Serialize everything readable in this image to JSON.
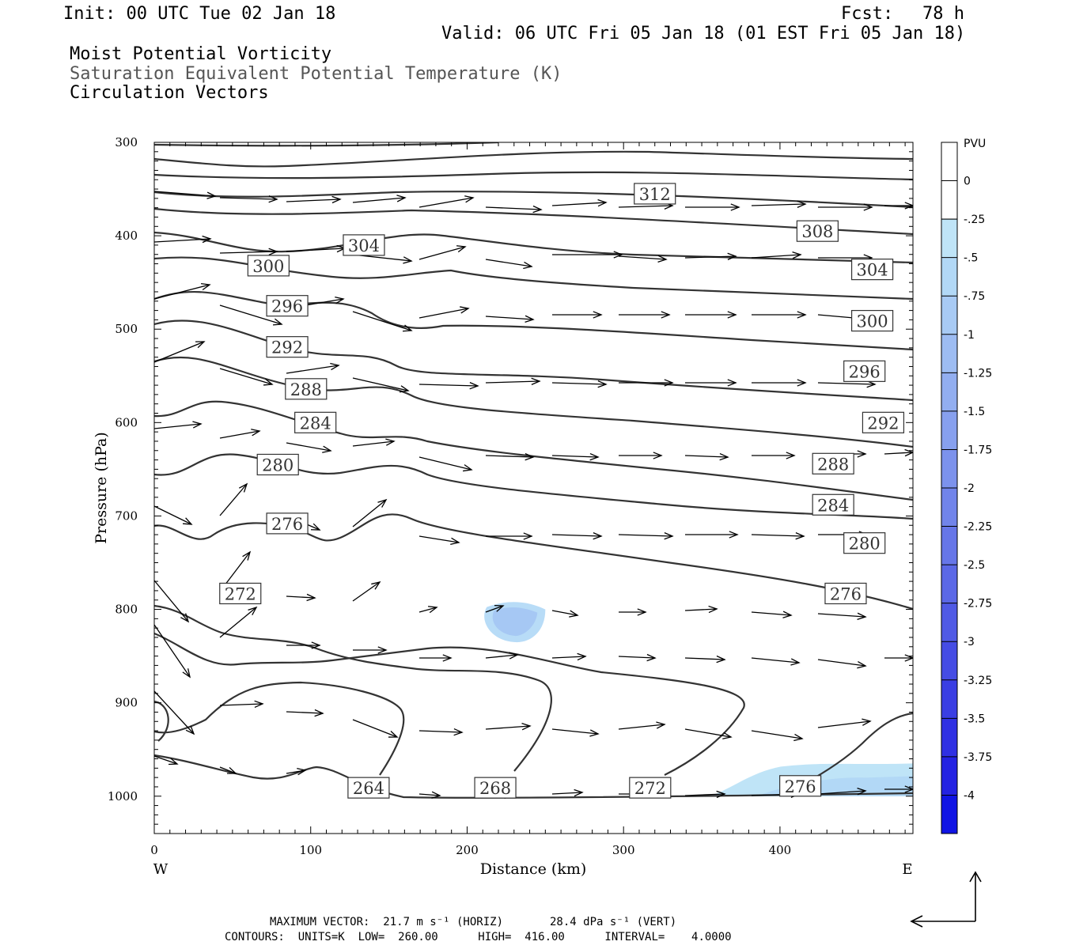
{
  "header": {
    "init": "Init: 00 UTC Tue 02 Jan 18",
    "fcst_label": "Fcst:",
    "fcst_value": "78 h",
    "valid": "Valid: 06 UTC Fri 05 Jan 18 (01 EST Fri 05 Jan 18)"
  },
  "legend_titles": [
    "Moist Potential Vorticity",
    "Saturation Equivalent Potential Temperature (K)",
    "Circulation Vectors"
  ],
  "colorbar": {
    "unit": "PVU",
    "labels": [
      "0",
      "-.25",
      "-.5",
      "-.75",
      "-1",
      "-1.25",
      "-1.5",
      "-1.75",
      "-2",
      "-2.25",
      "-2.5",
      "-2.75",
      "-3",
      "-3.25",
      "-3.5",
      "-3.75",
      "-4"
    ],
    "colors": [
      "#ffffff",
      "#bfe4f7",
      "#b2d8f6",
      "#a8caf4",
      "#9dbcf2",
      "#92aef0",
      "#87a0ee",
      "#7c92ec",
      "#7184ea",
      "#6676e8",
      "#5b68e6",
      "#505ae5",
      "#454ce4",
      "#3a3ee3",
      "#2f30e3",
      "#2422e2",
      "#1014e4"
    ]
  },
  "footer": {
    "max_vector": "MAXIMUM VECTOR:  21.7 m s⁻¹ (HORIZ)       28.4 dPa s⁻¹ (VERT)",
    "contours": "CONTOURS:  UNITS=K  LOW=  260.00      HIGH=  416.00      INTERVAL=    4.0000"
  },
  "chart_data": {
    "type": "contour",
    "xlabel": "Distance (km)",
    "ylabel": "Pressure (hPa)",
    "xlim": [
      0,
      485
    ],
    "ylim": [
      1040,
      300
    ],
    "x_ticks": [
      "0",
      "100",
      "200",
      "300",
      "400"
    ],
    "y_ticks": [
      "300",
      "400",
      "500",
      "600",
      "700",
      "800",
      "900",
      "1000"
    ],
    "x_side_labels": {
      "left": "W",
      "right": "E"
    },
    "contour_labels": [
      {
        "value": "312",
        "x": 320,
        "p": 355
      },
      {
        "value": "308",
        "x": 424,
        "p": 395
      },
      {
        "value": "304",
        "x": 134,
        "p": 410
      },
      {
        "value": "304",
        "x": 459,
        "p": 436
      },
      {
        "value": "300",
        "x": 73,
        "p": 432
      },
      {
        "value": "300",
        "x": 459,
        "p": 491
      },
      {
        "value": "296",
        "x": 85,
        "p": 475
      },
      {
        "value": "296",
        "x": 454,
        "p": 545
      },
      {
        "value": "292",
        "x": 85,
        "p": 519
      },
      {
        "value": "292",
        "x": 466,
        "p": 600
      },
      {
        "value": "288",
        "x": 97,
        "p": 564
      },
      {
        "value": "288",
        "x": 434,
        "p": 644
      },
      {
        "value": "284",
        "x": 103,
        "p": 600
      },
      {
        "value": "284",
        "x": 434,
        "p": 688
      },
      {
        "value": "280",
        "x": 79,
        "p": 645
      },
      {
        "value": "280",
        "x": 454,
        "p": 729
      },
      {
        "value": "276",
        "x": 85,
        "p": 708
      },
      {
        "value": "276",
        "x": 442,
        "p": 783
      },
      {
        "value": "272",
        "x": 55,
        "p": 783
      },
      {
        "value": "272",
        "x": 317,
        "p": 991
      },
      {
        "value": "276",
        "x": 413,
        "p": 989
      },
      {
        "value": "264",
        "x": 137,
        "p": 991
      },
      {
        "value": "268",
        "x": 218,
        "p": 991
      }
    ],
    "shaded_regions": [
      {
        "pvu_range": [
          -0.75,
          -0.25
        ],
        "x": [
          210,
          250
        ],
        "p": [
          795,
          835
        ]
      },
      {
        "pvu_range": [
          -0.5,
          -0.25
        ],
        "x": [
          355,
          485
        ],
        "p": [
          965,
          1000
        ]
      }
    ]
  }
}
